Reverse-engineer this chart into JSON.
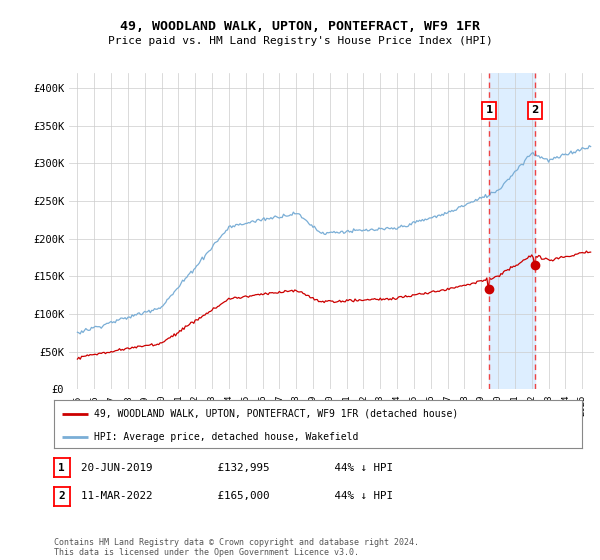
{
  "title1": "49, WOODLAND WALK, UPTON, PONTEFRACT, WF9 1FR",
  "title2": "Price paid vs. HM Land Registry's House Price Index (HPI)",
  "ylim": [
    0,
    420000
  ],
  "yticks": [
    0,
    50000,
    100000,
    150000,
    200000,
    250000,
    300000,
    350000,
    400000
  ],
  "ytick_labels": [
    "£0",
    "£50K",
    "£100K",
    "£150K",
    "£200K",
    "£250K",
    "£300K",
    "£350K",
    "£400K"
  ],
  "hpi_color": "#7aaed6",
  "price_color": "#cc0000",
  "marker1_date": 2019.47,
  "marker1_price": 132995,
  "marker2_date": 2022.19,
  "marker2_price": 165000,
  "legend_label1": "49, WOODLAND WALK, UPTON, PONTEFRACT, WF9 1FR (detached house)",
  "legend_label2": "HPI: Average price, detached house, Wakefield",
  "table_row1": [
    "1",
    "20-JUN-2019",
    "£132,995",
    "44% ↓ HPI"
  ],
  "table_row2": [
    "2",
    "11-MAR-2022",
    "£165,000",
    "44% ↓ HPI"
  ],
  "footer": "Contains HM Land Registry data © Crown copyright and database right 2024.\nThis data is licensed under the Open Government Licence v3.0.",
  "background_color": "#ffffff",
  "grid_color": "#cccccc",
  "shade_color": "#ddeeff",
  "vline_color": "#ee4444"
}
